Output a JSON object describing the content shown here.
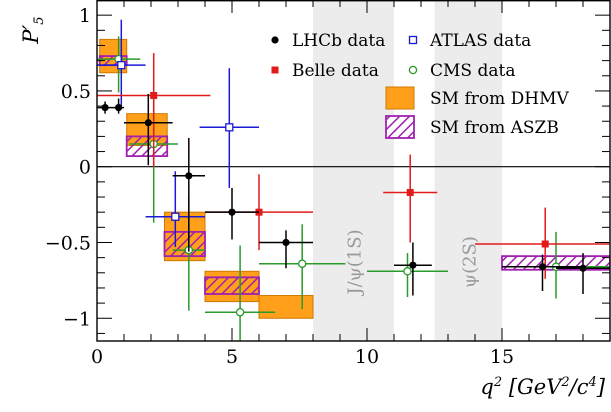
{
  "chart_data": {
    "type": "scatter",
    "title": "",
    "xlabel": "q^2 [GeV^2/c^4]",
    "ylabel": "P'_5",
    "xlim": [
      0,
      19
    ],
    "ylim": [
      -1.15,
      1.1
    ],
    "x_ticks": [
      0,
      5,
      10,
      15
    ],
    "y_ticks": [
      -1,
      -0.5,
      0,
      0.5,
      1
    ],
    "x_tick_labels": [
      "0",
      "5",
      "10",
      "15"
    ],
    "y_tick_labels": [
      "−1",
      "−0.5",
      "0",
      "0.5",
      "1"
    ],
    "grid": false,
    "zero_line": true,
    "legend_position": "top-right",
    "vetoed_regions": [
      {
        "label": "J/ψ(1S)",
        "x_range": [
          8,
          11
        ]
      },
      {
        "label": "ψ(2S)",
        "x_range": [
          12.5,
          15
        ]
      }
    ],
    "series": [
      {
        "name": "LHCb data",
        "marker": "filled-circle",
        "color": "#000000",
        "points": [
          {
            "x": 0.3,
            "xerr": 0.3,
            "y": 0.39,
            "yerr": [
              0.04,
              0.04
            ]
          },
          {
            "x": 0.8,
            "xerr": 0.2,
            "y": 0.39,
            "yerr": [
              0.04,
              0.06
            ]
          },
          {
            "x": 1.9,
            "xerr": 0.9,
            "y": 0.29,
            "yerr": [
              0.28,
              0.19
            ]
          },
          {
            "x": 3.4,
            "xerr": 0.6,
            "y": -0.06,
            "yerr": [
              0.5,
              0.25
            ]
          },
          {
            "x": 5.0,
            "xerr": 1.0,
            "y": -0.3,
            "yerr": [
              0.18,
              0.16
            ]
          },
          {
            "x": 7.0,
            "xerr": 1.0,
            "y": -0.5,
            "yerr": [
              0.17,
              0.08
            ]
          },
          {
            "x": 11.7,
            "xerr": 0.7,
            "y": -0.65,
            "yerr": [
              0.2,
              0.15
            ]
          },
          {
            "x": 16.5,
            "xerr": 1.5,
            "y": -0.66,
            "yerr": [
              0.16,
              0.08
            ]
          },
          {
            "x": 18.0,
            "xerr": 1.0,
            "y": -0.67,
            "yerr": [
              0.17,
              0.1
            ]
          }
        ]
      },
      {
        "name": "ATLAS data",
        "marker": "open-square",
        "color": "#1a1ad6",
        "points": [
          {
            "x": 0.9,
            "xerr": 0.9,
            "y": 0.67,
            "yerr": [
              0.27,
              0.3
            ]
          },
          {
            "x": 2.9,
            "xerr": 1.1,
            "y": -0.33,
            "yerr": [
              0.2,
              0.3
            ]
          },
          {
            "x": 4.9,
            "xerr": 1.1,
            "y": 0.26,
            "yerr": [
              0.4,
              0.39
            ]
          }
        ]
      },
      {
        "name": "Belle data",
        "marker": "filled-square",
        "color": "#e11a1a",
        "points": [
          {
            "x": 2.1,
            "xerr": 2.1,
            "y": 0.47,
            "yerr": [
              0.47,
              0.28
            ]
          },
          {
            "x": 6.0,
            "xerr": 2.0,
            "y": -0.3,
            "yerr": [
              0.25,
              0.25
            ]
          },
          {
            "x": 11.6,
            "xerr": 1.0,
            "y": -0.17,
            "yerr": [
              0.33,
              0.25
            ]
          },
          {
            "x": 16.6,
            "xerr": 2.6,
            "y": -0.51,
            "yerr": [
              0.23,
              0.24
            ]
          }
        ]
      },
      {
        "name": "CMS data",
        "marker": "open-circle",
        "color": "#2a9a2a",
        "points": [
          {
            "x": 0.8,
            "xerr": 0.8,
            "y": 0.71,
            "yerr": [
              0.22,
              0.15
            ]
          },
          {
            "x": 2.1,
            "xerr": 0.9,
            "y": 0.15,
            "yerr": [
              0.52,
              0.35
            ]
          },
          {
            "x": 3.4,
            "xerr": 0.6,
            "y": -0.55,
            "yerr": [
              0.4,
              0.35
            ]
          },
          {
            "x": 5.3,
            "xerr": 1.3,
            "y": -0.96,
            "yerr": [
              0.24,
              0.44
            ]
          },
          {
            "x": 7.6,
            "xerr": 1.6,
            "y": -0.64,
            "yerr": [
              0.3,
              0.26
            ]
          },
          {
            "x": 11.5,
            "xerr": 1.5,
            "y": -0.69,
            "yerr": [
              0.17,
              0.12
            ]
          },
          {
            "x": 17.0,
            "xerr": 2.0,
            "y": -0.66,
            "yerr": [
              0.21,
              0.23
            ]
          }
        ]
      },
      {
        "name": "SM from DHMV",
        "marker": "box",
        "color": "#ff9f1a",
        "boxes": [
          {
            "x": [
              0.1,
              1.1
            ],
            "y": [
              0.62,
              0.84
            ]
          },
          {
            "x": [
              1.1,
              2.6
            ],
            "y": [
              0.14,
              0.35
            ]
          },
          {
            "x": [
              2.5,
              4.0
            ],
            "y": [
              -0.62,
              -0.3
            ]
          },
          {
            "x": [
              4.0,
              6.0
            ],
            "y": [
              -0.89,
              -0.69
            ]
          },
          {
            "x": [
              6.0,
              8.0
            ],
            "y": [
              -1.0,
              -0.85
            ]
          }
        ]
      },
      {
        "name": "SM from ASZB",
        "marker": "hatched-box",
        "color": "#a020b0",
        "boxes": [
          {
            "x": [
              0.1,
              1.1
            ],
            "y": [
              0.67,
              0.73
            ]
          },
          {
            "x": [
              1.1,
              2.6
            ],
            "y": [
              0.07,
              0.2
            ]
          },
          {
            "x": [
              2.5,
              4.0
            ],
            "y": [
              -0.59,
              -0.43
            ]
          },
          {
            "x": [
              4.0,
              6.0
            ],
            "y": [
              -0.84,
              -0.73
            ]
          },
          {
            "x": [
              15.0,
              19.0
            ],
            "y": [
              -0.68,
              -0.59
            ]
          }
        ]
      }
    ]
  }
}
